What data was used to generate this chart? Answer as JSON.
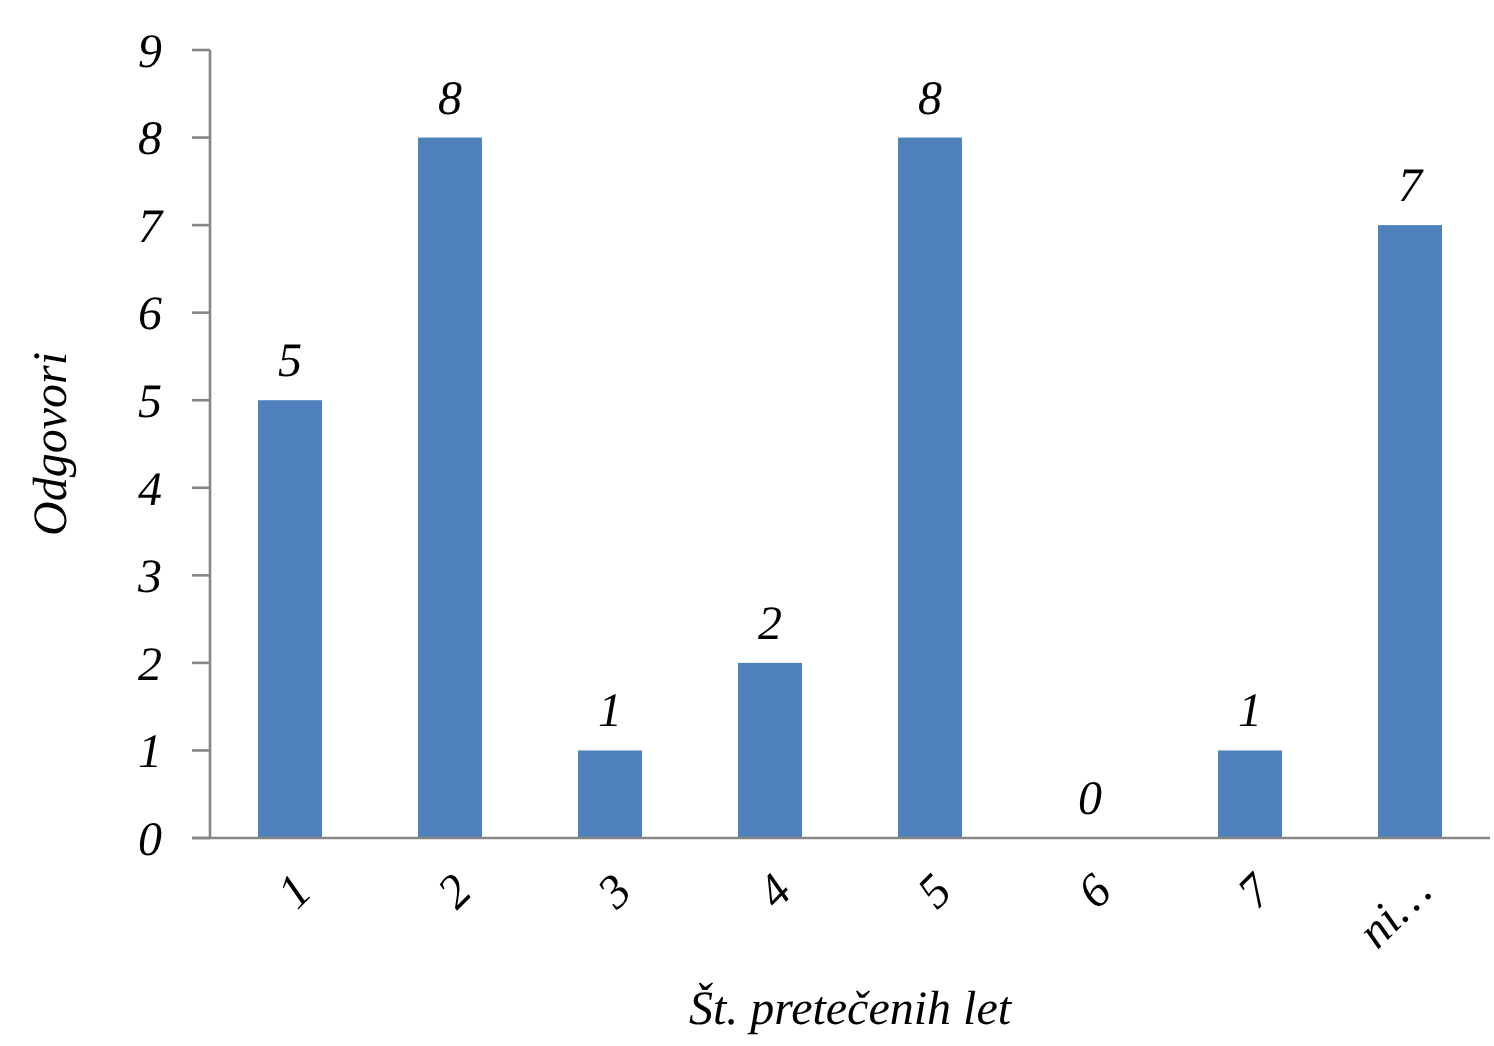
{
  "chart_data": {
    "type": "bar",
    "xlabel": "Št. pretečenih let",
    "ylabel": "Odgovori",
    "categories": [
      "1",
      "2",
      "3",
      "4",
      "5",
      "6",
      "7",
      "ni…"
    ],
    "values": [
      5,
      8,
      1,
      2,
      8,
      0,
      1,
      7
    ],
    "color": "#4f81bd",
    "ylim": [
      0,
      9
    ],
    "yticks": [
      0,
      1,
      2,
      3,
      4,
      5,
      6,
      7,
      8,
      9
    ],
    "grid": false,
    "data_labels": true
  }
}
